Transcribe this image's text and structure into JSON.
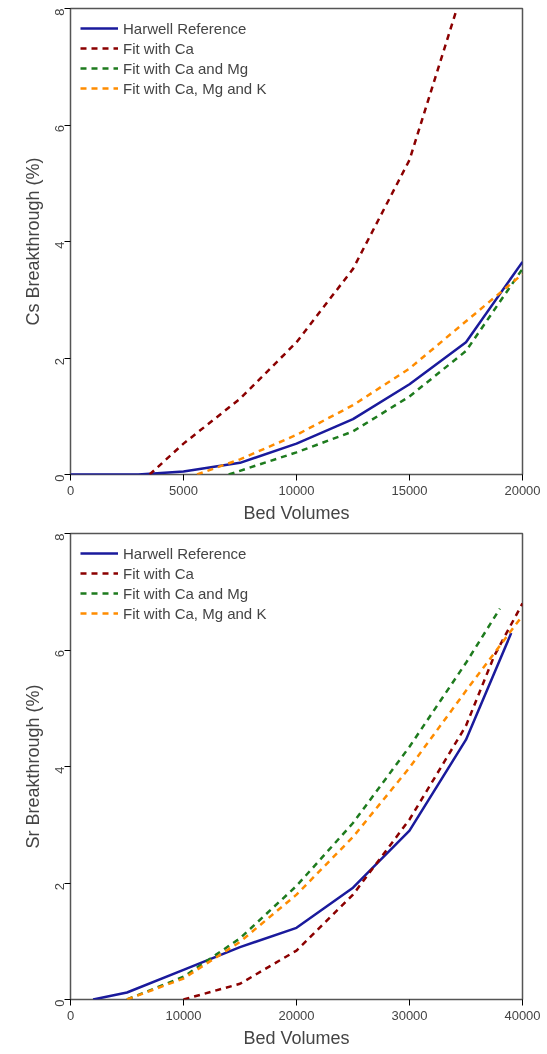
{
  "chart_data": [
    {
      "type": "line",
      "xlabel": "Bed Volumes",
      "ylabel": "Cs Breakthrough (%)",
      "xlim": [
        0,
        20000
      ],
      "ylim": [
        0,
        8
      ],
      "xticks": [
        0,
        5000,
        10000,
        15000,
        20000
      ],
      "yticks": [
        0,
        2,
        4,
        6,
        8
      ],
      "grid": false,
      "legend": "top left",
      "series": [
        {
          "name": "Harwell Reference",
          "color": "#1a1a9c",
          "line_style": "solid",
          "x": [
            0,
            3000,
            5000,
            7500,
            10000,
            12500,
            15000,
            17500,
            20000
          ],
          "values": [
            0,
            0,
            0.05,
            0.2,
            0.53,
            0.95,
            1.55,
            2.27,
            3.65
          ]
        },
        {
          "name": "Fit with Ca",
          "color": "#8b0000",
          "line_style": "dashed",
          "x": [
            3500,
            5000,
            7500,
            10000,
            12500,
            15000,
            17100
          ],
          "values": [
            0,
            0.53,
            1.3,
            2.27,
            3.53,
            5.4,
            8
          ]
        },
        {
          "name": "Fit with Ca and Mg",
          "color": "#1e7b1e",
          "line_style": "dashed",
          "x": [
            7000,
            10000,
            12500,
            15000,
            17500,
            20000
          ],
          "values": [
            0,
            0.38,
            0.74,
            1.34,
            2.12,
            3.53
          ]
        },
        {
          "name": "Fit with Ca, Mg and K",
          "color": "#ff8c00",
          "line_style": "dashed",
          "x": [
            5600,
            7500,
            10000,
            12500,
            15000,
            17500,
            20000
          ],
          "values": [
            0,
            0.26,
            0.68,
            1.19,
            1.82,
            2.63,
            3.44
          ]
        }
      ]
    },
    {
      "type": "line",
      "xlabel": "Bed Volumes",
      "ylabel": "Sr Breakthrough (%)",
      "xlim": [
        0,
        40000
      ],
      "ylim": [
        0,
        8
      ],
      "xticks": [
        0,
        10000,
        20000,
        30000,
        40000
      ],
      "yticks": [
        0,
        2,
        4,
        6,
        8
      ],
      "grid": false,
      "legend": "top left",
      "series": [
        {
          "name": "Harwell Reference",
          "color": "#1a1a9c",
          "line_style": "solid",
          "x": [
            2000,
            5000,
            10000,
            15000,
            20000,
            25000,
            30000,
            35000,
            39000
          ],
          "values": [
            0,
            0.12,
            0.51,
            0.9,
            1.23,
            1.92,
            2.9,
            4.46,
            6.29
          ]
        },
        {
          "name": "Fit with Ca",
          "color": "#8b0000",
          "line_style": "dashed",
          "x": [
            10000,
            15000,
            20000,
            25000,
            30000,
            35000,
            37500,
            40000
          ],
          "values": [
            0,
            0.27,
            0.84,
            1.8,
            3.09,
            4.7,
            5.9,
            6.8
          ]
        },
        {
          "name": "Fit with Ca and Mg",
          "color": "#1e7b1e",
          "line_style": "dashed",
          "x": [
            5000,
            10000,
            15000,
            20000,
            25000,
            30000,
            35000,
            38000
          ],
          "values": [
            0,
            0.39,
            1.05,
            1.95,
            3.03,
            4.34,
            5.78,
            6.71
          ]
        },
        {
          "name": "Fit with Ca, Mg and K",
          "color": "#ff8c00",
          "line_style": "dashed",
          "x": [
            5000,
            10000,
            15000,
            20000,
            25000,
            30000,
            35000,
            40000
          ],
          "values": [
            0,
            0.36,
            0.99,
            1.8,
            2.79,
            3.98,
            5.3,
            6.59
          ]
        }
      ]
    }
  ]
}
